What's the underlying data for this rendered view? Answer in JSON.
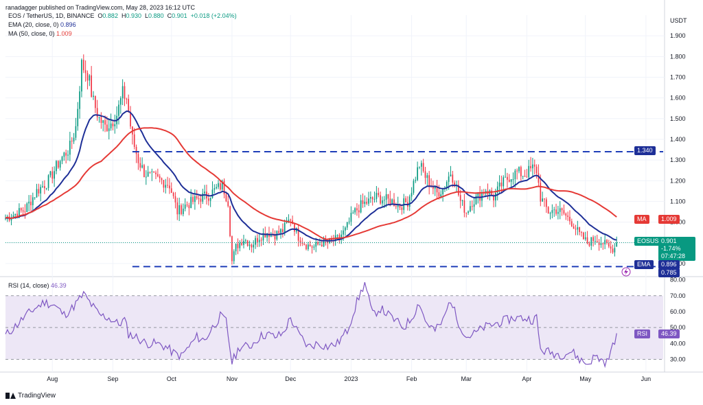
{
  "header": {
    "author": "ranadagger published on TradingView.com, May 28, 2023 16:12 UTC",
    "symbol_line": "EOS / TetherUS, 1D, BINANCE",
    "ohlc": {
      "o_label": "O",
      "o": "0.882",
      "h_label": "H",
      "h": "0.930",
      "l_label": "L",
      "l": "0.880",
      "c_label": "C",
      "c": "0.901",
      "chg": "+0.018 (+2.04%)"
    },
    "ema_label": "EMA (20, close, 0)",
    "ema_value": "0.896",
    "ma_label": "MA (50, close, 0)",
    "ma_value": "1.009",
    "rsi_label": "RSI (14, close)",
    "rsi_value": "46.39"
  },
  "colors": {
    "up": "#089981",
    "down": "#f23645",
    "ema": "#1e2f97",
    "ma": "#e53935",
    "rsi": "#7e57c2",
    "rsi_fill": "#ede7f6",
    "level_line": "#1e3db8",
    "tag_symbol": "#089981"
  },
  "tags": {
    "last_symbol": "EOSUSDT",
    "last_price": "0.901",
    "last_pct": "-1.74%",
    "last_timer": "07:47:28",
    "ma_tag": "MA",
    "ma_price": "1.009",
    "ema_tag": "EMA",
    "ema_price": "0.896",
    "level_high": "1.340",
    "level_low": "0.785",
    "rsi_tag": "RSI",
    "rsi_price": "46.39"
  },
  "footer": {
    "brand": "TradingView"
  },
  "chart_data": [
    {
      "type": "candlestick",
      "title": "EOS / TetherUS, 1D, BINANCE",
      "unit": "USDT",
      "ylim": [
        0.74,
        2.0
      ],
      "y_ticks": [
        "1.900",
        "1.800",
        "1.700",
        "1.600",
        "1.500",
        "1.400",
        "1.300",
        "1.200",
        "1.100",
        "1.000",
        "0.900",
        "0.800"
      ],
      "x_tick_labels": [
        {
          "label": "Aug",
          "day": 24
        },
        {
          "label": "Sep",
          "day": 55
        },
        {
          "label": "Oct",
          "day": 85
        },
        {
          "label": "Nov",
          "day": 116
        },
        {
          "label": "Dec",
          "day": 146
        },
        {
          "label": "2023",
          "day": 177
        },
        {
          "label": "Feb",
          "day": 208
        },
        {
          "label": "Mar",
          "day": 236
        },
        {
          "label": "Apr",
          "day": 267
        },
        {
          "label": "May",
          "day": 297
        },
        {
          "label": "Jun",
          "day": 328
        }
      ],
      "day_range": [
        0,
        340
      ],
      "horizontal_levels": [
        1.34,
        0.785
      ],
      "anchors": [
        [
          0,
          1.02
        ],
        [
          10,
          1.06
        ],
        [
          16,
          1.15
        ],
        [
          22,
          1.2
        ],
        [
          28,
          1.3
        ],
        [
          33,
          1.36
        ],
        [
          36,
          1.46
        ],
        [
          39,
          1.76
        ],
        [
          42,
          1.72
        ],
        [
          45,
          1.58
        ],
        [
          48,
          1.5
        ],
        [
          51,
          1.46
        ],
        [
          54,
          1.48
        ],
        [
          57,
          1.52
        ],
        [
          60,
          1.62
        ],
        [
          62,
          1.6
        ],
        [
          65,
          1.4
        ],
        [
          68,
          1.3
        ],
        [
          71,
          1.24
        ],
        [
          74,
          1.22
        ],
        [
          77,
          1.21
        ],
        [
          80,
          1.2
        ],
        [
          84,
          1.18
        ],
        [
          88,
          1.05
        ],
        [
          92,
          1.08
        ],
        [
          96,
          1.1
        ],
        [
          100,
          1.12
        ],
        [
          104,
          1.13
        ],
        [
          108,
          1.16
        ],
        [
          111,
          1.18
        ],
        [
          114,
          1.1
        ],
        [
          116,
          0.81
        ],
        [
          118,
          0.88
        ],
        [
          122,
          0.92
        ],
        [
          126,
          0.89
        ],
        [
          130,
          0.93
        ],
        [
          134,
          0.95
        ],
        [
          138,
          0.94
        ],
        [
          142,
          0.96
        ],
        [
          146,
          1.02
        ],
        [
          150,
          0.93
        ],
        [
          154,
          0.89
        ],
        [
          158,
          0.88
        ],
        [
          162,
          0.9
        ],
        [
          166,
          0.9
        ],
        [
          170,
          0.92
        ],
        [
          174,
          0.96
        ],
        [
          178,
          1.04
        ],
        [
          182,
          1.08
        ],
        [
          186,
          1.1
        ],
        [
          190,
          1.12
        ],
        [
          194,
          1.11
        ],
        [
          198,
          1.1
        ],
        [
          202,
          1.08
        ],
        [
          206,
          1.1
        ],
        [
          208,
          1.16
        ],
        [
          212,
          1.28
        ],
        [
          215,
          1.22
        ],
        [
          218,
          1.18
        ],
        [
          221,
          1.14
        ],
        [
          224,
          1.16
        ],
        [
          228,
          1.24
        ],
        [
          230,
          1.2
        ],
        [
          233,
          1.1
        ],
        [
          236,
          1.05
        ],
        [
          239,
          1.1
        ],
        [
          242,
          1.12
        ],
        [
          246,
          1.16
        ],
        [
          250,
          1.12
        ],
        [
          254,
          1.18
        ],
        [
          258,
          1.22
        ],
        [
          262,
          1.24
        ],
        [
          266,
          1.23
        ],
        [
          270,
          1.26
        ],
        [
          272,
          1.25
        ],
        [
          274,
          1.12
        ],
        [
          278,
          1.05
        ],
        [
          282,
          1.06
        ],
        [
          286,
          1.04
        ],
        [
          290,
          1.0
        ],
        [
          294,
          0.94
        ],
        [
          298,
          0.9
        ],
        [
          302,
          0.92
        ],
        [
          306,
          0.9
        ],
        [
          310,
          0.87
        ],
        [
          313,
          0.88
        ]
      ],
      "series": [
        {
          "name": "EMA (20, close, 0)",
          "last": 0.896
        },
        {
          "name": "MA (50, close, 0)",
          "last": 1.009
        }
      ],
      "last": {
        "open": 0.882,
        "high": 0.93,
        "low": 0.88,
        "close": 0.901
      }
    },
    {
      "type": "line",
      "title": "RSI (14, close)",
      "ylim": [
        22,
        82
      ],
      "y_ticks": [
        "80.00",
        "70.00",
        "60.00",
        "50.00",
        "40.00",
        "30.00"
      ],
      "band": [
        30,
        70
      ],
      "mid": 50,
      "anchors": [
        [
          0,
          45
        ],
        [
          6,
          52
        ],
        [
          10,
          57
        ],
        [
          15,
          62
        ],
        [
          20,
          66
        ],
        [
          25,
          64
        ],
        [
          30,
          58
        ],
        [
          34,
          62
        ],
        [
          38,
          68
        ],
        [
          40,
          71
        ],
        [
          43,
          66
        ],
        [
          48,
          58
        ],
        [
          53,
          56
        ],
        [
          58,
          52
        ],
        [
          61,
          55
        ],
        [
          63,
          46
        ],
        [
          67,
          44
        ],
        [
          72,
          40
        ],
        [
          77,
          40
        ],
        [
          82,
          38
        ],
        [
          86,
          34
        ],
        [
          90,
          32
        ],
        [
          94,
          38
        ],
        [
          98,
          44
        ],
        [
          102,
          42
        ],
        [
          106,
          50
        ],
        [
          110,
          57
        ],
        [
          113,
          54
        ],
        [
          116,
          28
        ],
        [
          120,
          38
        ],
        [
          125,
          38
        ],
        [
          130,
          44
        ],
        [
          134,
          46
        ],
        [
          138,
          44
        ],
        [
          142,
          46
        ],
        [
          146,
          56
        ],
        [
          150,
          46
        ],
        [
          155,
          38
        ],
        [
          160,
          40
        ],
        [
          165,
          38
        ],
        [
          170,
          40
        ],
        [
          175,
          48
        ],
        [
          180,
          66
        ],
        [
          184,
          78
        ],
        [
          188,
          58
        ],
        [
          192,
          62
        ],
        [
          196,
          58
        ],
        [
          200,
          54
        ],
        [
          204,
          50
        ],
        [
          208,
          56
        ],
        [
          212,
          66
        ],
        [
          215,
          54
        ],
        [
          220,
          48
        ],
        [
          224,
          54
        ],
        [
          228,
          68
        ],
        [
          231,
          56
        ],
        [
          236,
          44
        ],
        [
          240,
          46
        ],
        [
          245,
          50
        ],
        [
          250,
          52
        ],
        [
          255,
          54
        ],
        [
          260,
          56
        ],
        [
          265,
          56
        ],
        [
          270,
          55
        ],
        [
          272,
          56
        ],
        [
          274,
          36
        ],
        [
          280,
          34
        ],
        [
          285,
          33
        ],
        [
          290,
          35
        ],
        [
          294,
          30
        ],
        [
          298,
          27
        ],
        [
          302,
          32
        ],
        [
          306,
          29
        ],
        [
          308,
          28
        ],
        [
          311,
          38
        ],
        [
          313,
          46.39
        ]
      ]
    }
  ]
}
